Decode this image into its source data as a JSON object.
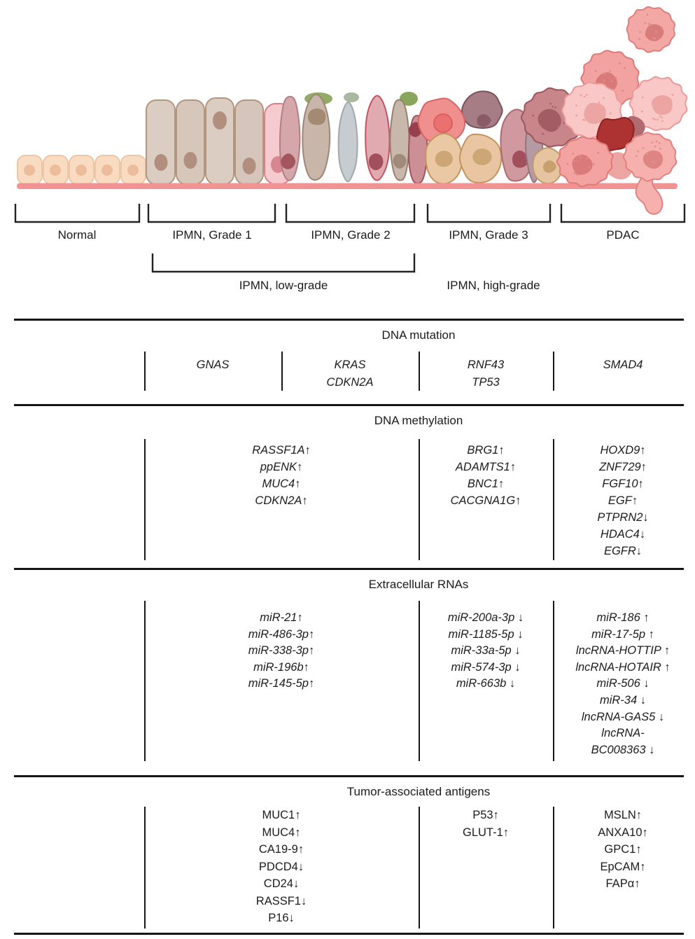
{
  "figure": {
    "stage_labels": [
      "Normal",
      "IPMN, Grade 1",
      "IPMN, Grade 2",
      "IPMN, Grade 3",
      "PDAC"
    ],
    "group_labels": [
      "IPMN, low-grade",
      "IPMN, high-grade"
    ]
  },
  "sections": [
    {
      "title": "DNA mutation",
      "columns": [
        {
          "items": [
            "GNAS"
          ]
        },
        {
          "items": [
            "KRAS",
            "CDKN2A"
          ]
        },
        {
          "items": [
            "RNF43",
            "TP53"
          ]
        },
        {
          "items": [
            "SMAD4"
          ]
        }
      ]
    },
    {
      "title": "DNA methylation",
      "columns": [
        {
          "items": [
            "RASSF1A↑",
            "ppENK↑",
            "MUC4↑",
            "CDKN2A↑"
          ]
        },
        {
          "items": [
            "BRG1↑",
            "ADAMTS1↑",
            "BNC1↑",
            "CACGNA1G↑"
          ]
        },
        {
          "items": [
            "HOXD9↑",
            "ZNF729↑",
            "FGF10↑",
            "EGF↑",
            "PTPRN2↓",
            "HDAC4↓",
            "EGFR↓"
          ]
        }
      ]
    },
    {
      "title": "Extracellular RNAs",
      "columns": [
        {
          "items": [
            "miR-21↑",
            "miR-486-3p↑",
            "miR-338-3p↑",
            "miR-196b↑",
            "miR-145-5p↑"
          ]
        },
        {
          "items": [
            "miR-200a-3p ↓",
            "miR-1185-5p ↓",
            "miR-33a-5p ↓",
            "miR-574-3p ↓",
            "miR-663b ↓"
          ]
        },
        {
          "items": [
            "miR-186 ↑",
            "miR-17-5p ↑",
            "lncRNA-HOTTIP ↑",
            "lncRNA-HOTAIR ↑",
            "miR-506 ↓",
            "miR-34 ↓",
            "lncRNA-GAS5 ↓",
            "lncRNA-",
            "BC008363 ↓"
          ]
        }
      ]
    },
    {
      "title": "Tumor-associated antigens",
      "columns": [
        {
          "items": [
            "MUC1↑",
            "MUC4↑",
            "CA19-9↑",
            "PDCD4↓",
            "CD24↓",
            "RASSF1↓",
            "P16↓"
          ]
        },
        {
          "items": [
            "P53↑",
            "GLUT-1↑"
          ]
        },
        {
          "items": [
            "MSLN↑",
            "ANXA10↑",
            "GPC1↑",
            "EpCAM↑",
            "FAPα↑"
          ]
        }
      ]
    }
  ],
  "palette": {
    "membrane": "#f19392",
    "normal_cell": "#f9dbc1",
    "ipmn_grade1_cell": "#dccdc2",
    "ipmn_grade2_cell": "#d5a7ab",
    "ipmn_grade3_cell": "#eac8a4",
    "pdac_cell": "#f3a3a1",
    "pdac_cell_light": "#f9c7c5",
    "pdac_cell_dark_red": "#ac3332",
    "rule_line": "#161616",
    "text": "#1b1b1b"
  }
}
